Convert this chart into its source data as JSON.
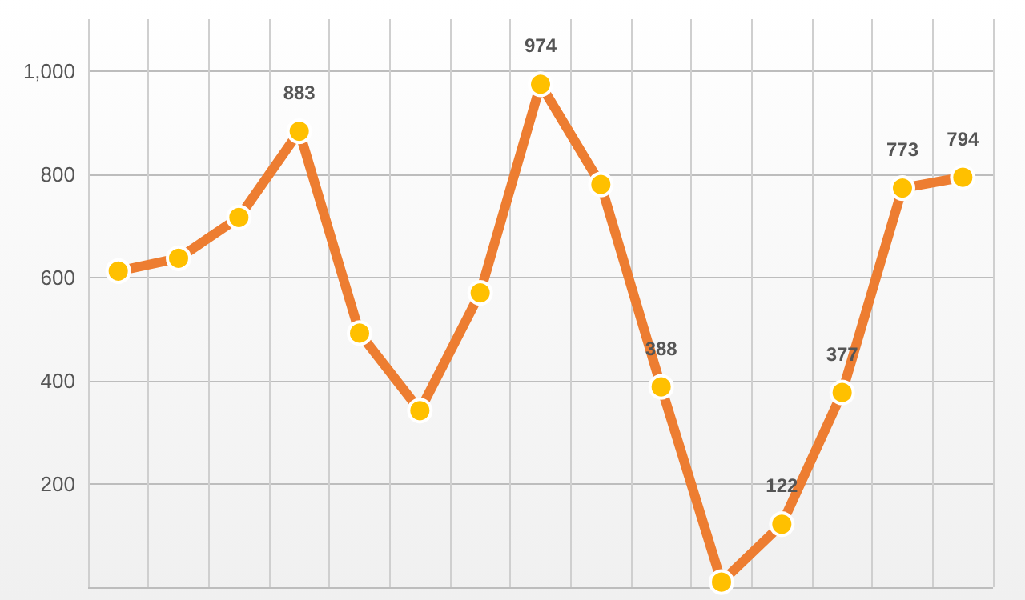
{
  "chart_data": {
    "type": "line",
    "categories": [
      null,
      null,
      null,
      null,
      null,
      null,
      null,
      null,
      null,
      null,
      null,
      null,
      null,
      null,
      null
    ],
    "series": [
      {
        "color": "#ed7d31",
        "values": [
          612,
          637,
          716,
          883,
          492,
          342,
          570,
          974,
          780,
          388,
          10,
          122,
          377,
          773,
          794
        ],
        "value_labels": [
          null,
          null,
          null,
          "883",
          null,
          null,
          null,
          "974",
          null,
          "388",
          null,
          "122",
          "377",
          "773",
          "794"
        ]
      }
    ],
    "ylim": [
      0,
      1100
    ],
    "yticks": [
      {
        "value": 0,
        "label": null
      },
      {
        "value": 200,
        "label": "200"
      },
      {
        "value": 400,
        "label": "400"
      },
      {
        "value": 600,
        "label": "600"
      },
      {
        "value": 800,
        "label": "800"
      },
      {
        "value": 1000,
        "label": "1,000"
      }
    ],
    "grid": true,
    "marker": "circle",
    "line_style": "solid"
  }
}
